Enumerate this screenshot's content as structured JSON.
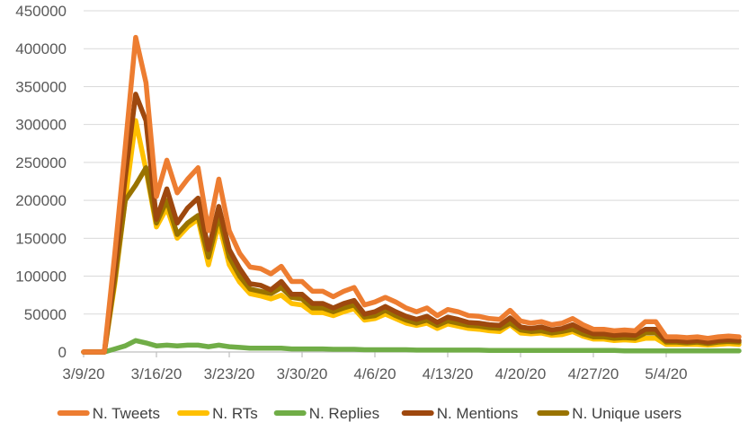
{
  "chart_data": {
    "type": "line",
    "title": "",
    "xlabel": "",
    "ylabel": "",
    "ylim": [
      0,
      450000
    ],
    "yticks": [
      0,
      50000,
      100000,
      150000,
      200000,
      250000,
      300000,
      350000,
      400000,
      450000
    ],
    "x_start": "3/9/20",
    "x": [
      0,
      1,
      2,
      3,
      4,
      5,
      6,
      7,
      8,
      9,
      10,
      11,
      12,
      13,
      14,
      15,
      16,
      17,
      18,
      19,
      20,
      21,
      22,
      23,
      24,
      25,
      26,
      27,
      28,
      29,
      30,
      31,
      32,
      33,
      34,
      35,
      36,
      37,
      38,
      39,
      40,
      41,
      42,
      43,
      44,
      45,
      46,
      47,
      48,
      49,
      50,
      51,
      52,
      53,
      54,
      55,
      56,
      57,
      58,
      59,
      60,
      61,
      62,
      63
    ],
    "xticks": [
      {
        "day": 0,
        "label": "3/9/20"
      },
      {
        "day": 7,
        "label": "3/16/20"
      },
      {
        "day": 14,
        "label": "3/23/20"
      },
      {
        "day": 21,
        "label": "3/30/20"
      },
      {
        "day": 28,
        "label": "4/6/20"
      },
      {
        "day": 35,
        "label": "4/13/20"
      },
      {
        "day": 42,
        "label": "4/20/20"
      },
      {
        "day": 49,
        "label": "4/27/20"
      },
      {
        "day": 56,
        "label": "5/4/20"
      }
    ],
    "grid": true,
    "legend_position": "bottom",
    "series": [
      {
        "name": "N. Tweets",
        "color": "#ED7D31",
        "values": [
          0,
          0,
          0,
          130000,
          270000,
          415000,
          355000,
          205000,
          253000,
          210000,
          228000,
          243000,
          160000,
          228000,
          160000,
          130000,
          112000,
          110000,
          103000,
          113000,
          93000,
          93000,
          80000,
          80000,
          73000,
          80000,
          85000,
          62000,
          66000,
          72000,
          66000,
          58000,
          53000,
          58000,
          48000,
          56000,
          53000,
          48000,
          47000,
          44000,
          43000,
          55000,
          41000,
          38000,
          40000,
          36000,
          38000,
          44000,
          36000,
          30000,
          30000,
          28000,
          29000,
          28000,
          40000,
          40000,
          20000,
          20000,
          19000,
          20000,
          18000,
          20000,
          21000,
          20000
        ]
      },
      {
        "name": "N. RTs",
        "color": "#FFC000",
        "values": [
          0,
          0,
          0,
          90000,
          200000,
          305000,
          240000,
          165000,
          190000,
          150000,
          165000,
          175000,
          115000,
          170000,
          115000,
          92000,
          77000,
          74000,
          70000,
          75000,
          64000,
          62000,
          52000,
          52000,
          48000,
          53000,
          57000,
          42000,
          44000,
          50000,
          44000,
          38000,
          35000,
          38000,
          31000,
          37000,
          34000,
          31000,
          30000,
          28000,
          27000,
          36000,
          25000,
          24000,
          25000,
          22000,
          23000,
          27000,
          21000,
          17000,
          17000,
          15000,
          16000,
          15000,
          18000,
          18000,
          10000,
          10000,
          10000,
          10000,
          9000,
          10000,
          11000,
          10000
        ]
      },
      {
        "name": "N. Replies",
        "color": "#70AD47",
        "values": [
          0,
          0,
          0,
          4000,
          8000,
          15000,
          12000,
          8000,
          9000,
          8000,
          9000,
          9000,
          7000,
          9000,
          7000,
          6000,
          5000,
          5000,
          5000,
          5000,
          4000,
          4000,
          4000,
          4000,
          3500,
          3500,
          3500,
          3000,
          3000,
          3000,
          3000,
          3000,
          2500,
          2500,
          2500,
          2500,
          2500,
          2500,
          2500,
          2000,
          2000,
          2000,
          2000,
          2000,
          2000,
          2000,
          2000,
          2000,
          2000,
          2000,
          2000,
          2000,
          1500,
          1500,
          1500,
          1500,
          1500,
          1500,
          1500,
          1500,
          1500,
          1500,
          1500,
          1500
        ]
      },
      {
        "name": "N. Mentions",
        "color": "#9E480E",
        "values": [
          0,
          0,
          0,
          110000,
          230000,
          340000,
          305000,
          175000,
          215000,
          170000,
          190000,
          203000,
          135000,
          192000,
          135000,
          110000,
          90000,
          88000,
          82000,
          93000,
          76000,
          76000,
          64000,
          64000,
          58000,
          64000,
          68000,
          50000,
          53000,
          60000,
          53000,
          47000,
          43000,
          47000,
          39000,
          46000,
          43000,
          39000,
          38000,
          36000,
          35000,
          45000,
          33000,
          31000,
          33000,
          29000,
          31000,
          36000,
          29000,
          24000,
          24000,
          22000,
          23000,
          22000,
          30000,
          30000,
          15000,
          15000,
          14000,
          15000,
          13000,
          15000,
          16000,
          15000
        ]
      },
      {
        "name": "N. Unique users",
        "color": "#997300",
        "values": [
          0,
          0,
          0,
          95000,
          200000,
          220000,
          243000,
          170000,
          200000,
          155000,
          170000,
          180000,
          125000,
          180000,
          125000,
          100000,
          83000,
          80000,
          77000,
          85000,
          72000,
          70000,
          58000,
          58000,
          53000,
          58000,
          62000,
          46000,
          48000,
          55000,
          48000,
          42000,
          38000,
          42000,
          35000,
          41000,
          38000,
          35000,
          34000,
          32000,
          31000,
          38000,
          29000,
          27000,
          28000,
          25000,
          27000,
          30000,
          24000,
          20000,
          20000,
          18000,
          19000,
          18000,
          25000,
          25000,
          13000,
          13000,
          12000,
          13000,
          11000,
          13000,
          14000,
          13000
        ]
      }
    ]
  }
}
